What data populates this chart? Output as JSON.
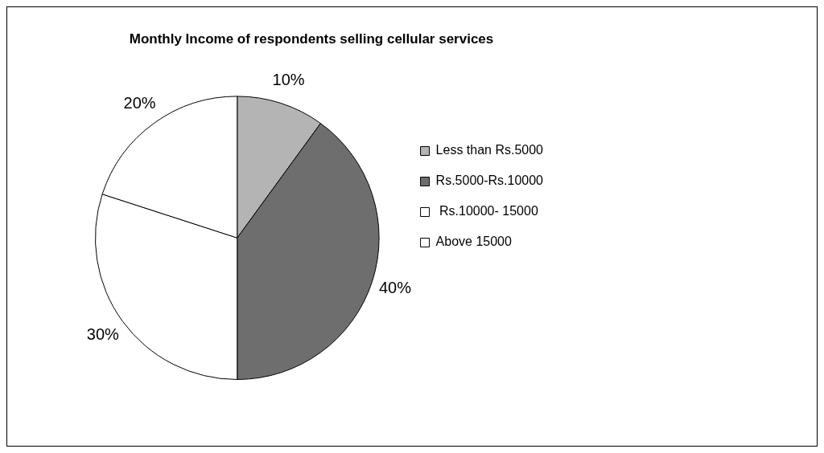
{
  "chart_data": {
    "type": "pie",
    "title": "Monthly Income of respondents selling cellular services",
    "categories": [
      "Less than Rs.5000",
      "Rs.5000-Rs.10000",
      " Rs.10000- 15000",
      "Above 15000"
    ],
    "values": [
      10,
      40,
      30,
      20
    ],
    "colors": [
      "#b4b4b4",
      "#6e6e6e",
      "#ffffff",
      "#ffffff"
    ],
    "value_labels": [
      "10%",
      "40%",
      "30%",
      "20%"
    ],
    "legend": "right"
  }
}
